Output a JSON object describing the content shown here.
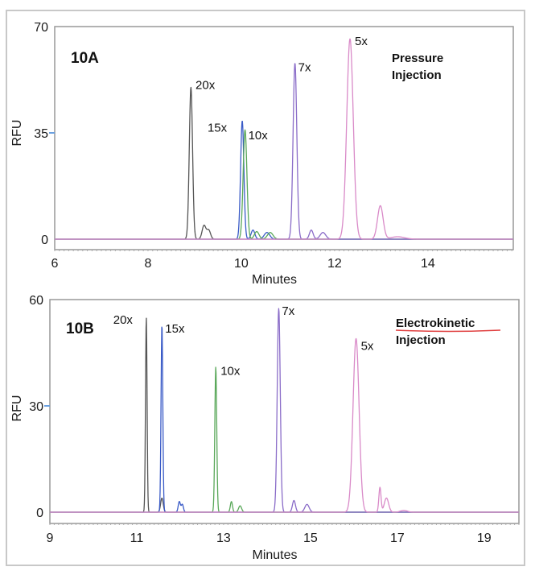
{
  "chart_data": [
    {
      "type": "line",
      "panel_label": "10A",
      "title": "Pressure Injection",
      "title_lines": [
        "Pressure",
        "Injection"
      ],
      "xlabel": "Minutes",
      "ylabel": "RFU",
      "xlim": [
        6,
        15.83
      ],
      "ylim": [
        0,
        70
      ],
      "xticks": [
        6,
        8,
        10,
        12,
        14
      ],
      "xtick_labels": [
        "6",
        "8",
        "10",
        "12",
        "14"
      ],
      "yticks": [
        0,
        35,
        70
      ],
      "ytick_labels": [
        "0",
        "35",
        "70"
      ],
      "grid": false,
      "series": [
        {
          "name": "20x",
          "color": "#555555",
          "label": "20x",
          "label_at": [
            8.95,
            50
          ],
          "peaks": [
            [
              8.92,
              50,
              0.035
            ],
            [
              9.2,
              4.5,
              0.04
            ],
            [
              9.3,
              3,
              0.04
            ]
          ]
        },
        {
          "name": "15x",
          "color": "#3a5bc7",
          "label": "15x",
          "label_at": [
            10.0,
            38
          ],
          "peaks": [
            [
              10.02,
              39,
              0.035
            ],
            [
              10.25,
              3,
              0.04
            ],
            [
              10.55,
              2.2,
              0.06
            ]
          ]
        },
        {
          "name": "10x",
          "color": "#5aa85a",
          "label": "10x",
          "label_at": [
            10.08,
            36
          ],
          "peaks": [
            [
              10.08,
              36,
              0.04
            ],
            [
              10.33,
              2.5,
              0.05
            ],
            [
              10.62,
              2.2,
              0.06
            ]
          ]
        },
        {
          "name": "7x",
          "color": "#8a6cc8",
          "label": "7x",
          "label_at": [
            11.15,
            60
          ],
          "peaks": [
            [
              11.15,
              58,
              0.04
            ],
            [
              11.5,
              3,
              0.04
            ],
            [
              11.75,
              2.2,
              0.06
            ]
          ]
        },
        {
          "name": "5x",
          "color": "#d98ac8",
          "label": "5x",
          "label_at": [
            12.33,
            66
          ],
          "peaks": [
            [
              12.33,
              66,
              0.07
            ],
            [
              12.98,
              11,
              0.06
            ],
            [
              13.35,
              0.8,
              0.15
            ]
          ]
        }
      ]
    },
    {
      "type": "line",
      "panel_label": "10B",
      "title": "Electrokinetic Injection",
      "title_lines": [
        "Electrokinetic",
        "Injection"
      ],
      "xlabel": "Minutes",
      "ylabel": "RFU",
      "xlim": [
        9,
        19.8
      ],
      "ylim": [
        0,
        60
      ],
      "xticks": [
        9,
        11,
        13,
        15,
        17,
        19
      ],
      "xtick_labels": [
        "9",
        "11",
        "13",
        "15",
        "17",
        "19"
      ],
      "yticks": [
        0,
        30,
        60
      ],
      "ytick_labels": [
        "0",
        "30",
        "60"
      ],
      "grid": false,
      "series": [
        {
          "name": "20x",
          "color": "#555555",
          "label": "20x",
          "label_at": [
            11.2,
            55
          ],
          "peaks": [
            [
              11.22,
              55,
              0.018
            ],
            [
              11.58,
              4,
              0.03
            ]
          ]
        },
        {
          "name": "15x",
          "color": "#3a5bc7",
          "label": "15x",
          "label_at": [
            11.58,
            53
          ],
          "peaks": [
            [
              11.58,
              53,
              0.02
            ],
            [
              11.98,
              3,
              0.025
            ],
            [
              12.05,
              2.2,
              0.025
            ]
          ]
        },
        {
          "name": "10x",
          "color": "#5aa85a",
          "label": "10x",
          "label_at": [
            12.82,
            41
          ],
          "peaks": [
            [
              12.82,
              41,
              0.022
            ],
            [
              13.18,
              3,
              0.025
            ],
            [
              13.38,
              1.8,
              0.035
            ]
          ]
        },
        {
          "name": "7x",
          "color": "#8a6cc8",
          "label": "7x",
          "label_at": [
            14.25,
            58
          ],
          "peaks": [
            [
              14.27,
              57.5,
              0.035
            ],
            [
              14.62,
              3.3,
              0.035
            ],
            [
              14.92,
              2.2,
              0.05
            ]
          ]
        },
        {
          "name": "5x",
          "color": "#d98ac8",
          "label": "5x",
          "label_at": [
            16.05,
            49
          ],
          "peaks": [
            [
              16.05,
              49,
              0.07
            ],
            [
              16.6,
              7,
              0.025
            ],
            [
              16.75,
              4,
              0.05
            ],
            [
              17.15,
              0.5,
              0.08
            ]
          ]
        }
      ]
    }
  ],
  "colors": {
    "tick_accent": "#6aa0e0",
    "axis": "#999999",
    "frame": "#c8c8c8",
    "underline": "#e04040"
  }
}
